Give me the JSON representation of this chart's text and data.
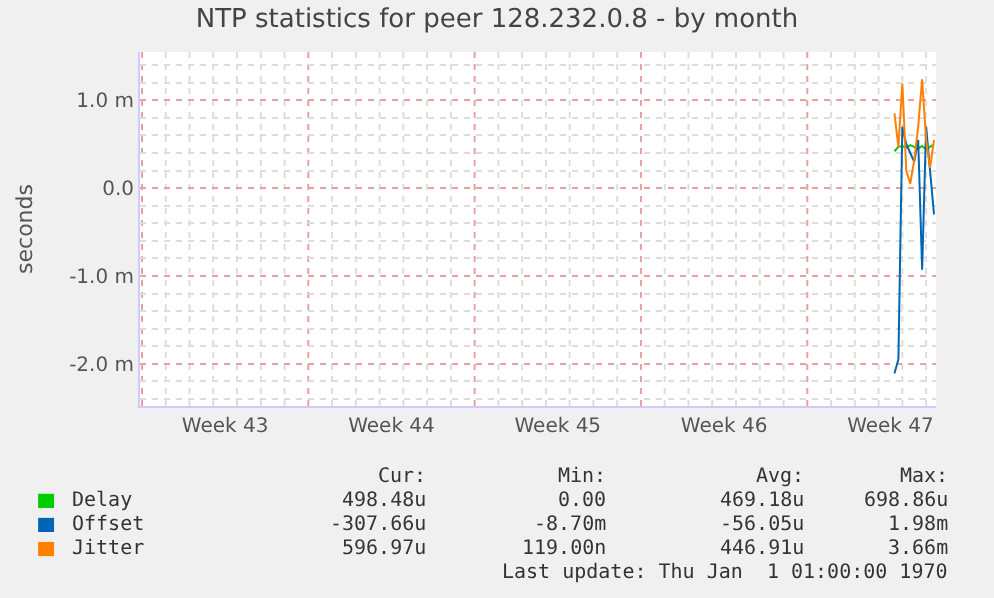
{
  "chart_data": {
    "type": "line",
    "title": "NTP statistics for peer 128.232.0.8 - by month",
    "ylabel": "seconds",
    "categories": [
      null,
      null,
      null,
      null,
      null,
      null,
      null,
      null,
      null,
      null,
      null,
      null,
      null,
      null,
      null,
      null,
      null,
      null,
      null,
      null,
      null,
      "Week 43",
      null,
      null,
      null,
      null,
      null,
      null,
      null,
      null,
      null,
      null,
      null,
      null,
      null,
      null,
      null,
      null,
      null,
      null,
      null,
      null,
      null,
      null,
      null,
      null,
      null,
      null,
      null,
      null,
      null,
      null,
      null,
      null,
      null,
      null,
      null,
      null,
      null,
      null,
      null,
      null,
      null,
      "Week 44",
      null,
      null,
      null,
      null,
      null,
      null,
      null,
      null,
      null,
      null,
      null,
      null,
      null,
      null,
      null,
      null,
      null,
      null,
      null,
      null,
      null,
      null,
      null,
      null,
      null,
      null,
      null,
      null,
      null,
      null,
      null,
      null,
      null,
      null,
      null,
      null,
      null,
      null,
      null,
      null,
      null,
      "Week 45",
      null,
      null,
      null,
      null,
      null,
      null,
      null,
      null,
      null,
      null,
      null,
      null,
      null,
      null,
      null,
      null,
      null,
      null,
      null,
      null,
      null,
      null,
      null,
      null,
      null,
      null,
      null,
      null,
      null,
      null,
      null,
      null,
      null,
      null,
      null,
      null,
      null,
      null,
      null,
      null,
      null,
      "Week 46",
      null,
      null,
      null,
      null,
      null,
      null,
      null,
      null,
      null,
      null,
      null,
      null,
      null,
      null,
      null,
      null,
      null,
      null,
      null,
      null,
      null,
      null,
      null,
      null,
      null,
      null,
      null,
      null,
      null,
      null,
      null,
      null,
      null,
      null,
      null,
      null,
      null,
      null,
      null,
      null,
      null,
      "Week 47",
      null,
      null,
      null,
      null,
      null,
      null,
      null,
      null,
      null,
      null,
      null
    ],
    "ylim": [
      -2.48,
      1.55
    ],
    "yticks": [
      {
        "value": -2.0,
        "label": "-2.0 m"
      },
      {
        "value": -1.0,
        "label": "-1.0 m"
      },
      {
        "value": 0,
        "label": "0.0"
      },
      {
        "value": 1.0,
        "label": "1.0 m"
      }
    ],
    "grid": true,
    "legend": "bottom",
    "series": [
      {
        "name": "Delay",
        "color": "#00cc00",
        "values": [
          null,
          null,
          null,
          null,
          null,
          null,
          null,
          null,
          null,
          null,
          null,
          null,
          null,
          null,
          null,
          null,
          null,
          null,
          null,
          null,
          null,
          null,
          null,
          null,
          null,
          null,
          null,
          null,
          null,
          null,
          null,
          null,
          null,
          null,
          null,
          null,
          null,
          null,
          null,
          null,
          null,
          null,
          null,
          null,
          null,
          null,
          null,
          null,
          null,
          null,
          null,
          null,
          null,
          null,
          null,
          null,
          null,
          null,
          null,
          null,
          null,
          null,
          null,
          null,
          null,
          null,
          null,
          null,
          null,
          null,
          null,
          null,
          null,
          null,
          null,
          null,
          null,
          null,
          null,
          null,
          null,
          null,
          null,
          null,
          null,
          null,
          null,
          null,
          null,
          null,
          null,
          null,
          null,
          null,
          null,
          null,
          null,
          null,
          null,
          null,
          null,
          null,
          null,
          null,
          null,
          null,
          null,
          null,
          null,
          null,
          null,
          null,
          null,
          null,
          null,
          null,
          null,
          null,
          null,
          null,
          null,
          null,
          null,
          null,
          null,
          null,
          null,
          null,
          null,
          null,
          null,
          null,
          null,
          null,
          null,
          null,
          null,
          null,
          null,
          null,
          null,
          null,
          null,
          null,
          null,
          null,
          null,
          null,
          null,
          null,
          null,
          null,
          null,
          null,
          null,
          null,
          null,
          null,
          null,
          null,
          null,
          null,
          null,
          null,
          null,
          null,
          null,
          null,
          null,
          null,
          null,
          null,
          null,
          null,
          null,
          null,
          null,
          null,
          null,
          null,
          null,
          null,
          null,
          null,
          null,
          null,
          null,
          null,
          null,
          null,
          0.42,
          0.47,
          0.48,
          0.46,
          0.49,
          0.47,
          0.45,
          0.48,
          0.44,
          0.47,
          0.5
        ]
      },
      {
        "name": "Offset",
        "color": "#0066b3",
        "values": [
          null,
          null,
          null,
          null,
          null,
          null,
          null,
          null,
          null,
          null,
          null,
          null,
          null,
          null,
          null,
          null,
          null,
          null,
          null,
          null,
          null,
          null,
          null,
          null,
          null,
          null,
          null,
          null,
          null,
          null,
          null,
          null,
          null,
          null,
          null,
          null,
          null,
          null,
          null,
          null,
          null,
          null,
          null,
          null,
          null,
          null,
          null,
          null,
          null,
          null,
          null,
          null,
          null,
          null,
          null,
          null,
          null,
          null,
          null,
          null,
          null,
          null,
          null,
          null,
          null,
          null,
          null,
          null,
          null,
          null,
          null,
          null,
          null,
          null,
          null,
          null,
          null,
          null,
          null,
          null,
          null,
          null,
          null,
          null,
          null,
          null,
          null,
          null,
          null,
          null,
          null,
          null,
          null,
          null,
          null,
          null,
          null,
          null,
          null,
          null,
          null,
          null,
          null,
          null,
          null,
          null,
          null,
          null,
          null,
          null,
          null,
          null,
          null,
          null,
          null,
          null,
          null,
          null,
          null,
          null,
          null,
          null,
          null,
          null,
          null,
          null,
          null,
          null,
          null,
          null,
          null,
          null,
          null,
          null,
          null,
          null,
          null,
          null,
          null,
          null,
          null,
          null,
          null,
          null,
          null,
          null,
          null,
          null,
          null,
          null,
          null,
          null,
          null,
          null,
          null,
          null,
          null,
          null,
          null,
          null,
          null,
          null,
          null,
          null,
          null,
          null,
          null,
          null,
          null,
          null,
          null,
          null,
          null,
          null,
          null,
          null,
          null,
          null,
          null,
          null,
          null,
          null,
          null,
          null,
          null,
          null,
          null,
          null,
          null,
          null,
          -2.11,
          -1.95,
          0.7,
          0.5,
          0.4,
          0.3,
          0.55,
          -0.93,
          0.7,
          0.2,
          -0.3
        ]
      },
      {
        "name": "Jitter",
        "color": "#ff8000",
        "values": [
          null,
          null,
          null,
          null,
          null,
          null,
          null,
          null,
          null,
          null,
          null,
          null,
          null,
          null,
          null,
          null,
          null,
          null,
          null,
          null,
          null,
          null,
          null,
          null,
          null,
          null,
          null,
          null,
          null,
          null,
          null,
          null,
          null,
          null,
          null,
          null,
          null,
          null,
          null,
          null,
          null,
          null,
          null,
          null,
          null,
          null,
          null,
          null,
          null,
          null,
          null,
          null,
          null,
          null,
          null,
          null,
          null,
          null,
          null,
          null,
          null,
          null,
          null,
          null,
          null,
          null,
          null,
          null,
          null,
          null,
          null,
          null,
          null,
          null,
          null,
          null,
          null,
          null,
          null,
          null,
          null,
          null,
          null,
          null,
          null,
          null,
          null,
          null,
          null,
          null,
          null,
          null,
          null,
          null,
          null,
          null,
          null,
          null,
          null,
          null,
          null,
          null,
          null,
          null,
          null,
          null,
          null,
          null,
          null,
          null,
          null,
          null,
          null,
          null,
          null,
          null,
          null,
          null,
          null,
          null,
          null,
          null,
          null,
          null,
          null,
          null,
          null,
          null,
          null,
          null,
          null,
          null,
          null,
          null,
          null,
          null,
          null,
          null,
          null,
          null,
          null,
          null,
          null,
          null,
          null,
          null,
          null,
          null,
          null,
          null,
          null,
          null,
          null,
          null,
          null,
          null,
          null,
          null,
          null,
          null,
          null,
          null,
          null,
          null,
          null,
          null,
          null,
          null,
          null,
          null,
          null,
          null,
          null,
          null,
          null,
          null,
          null,
          null,
          null,
          null,
          null,
          null,
          null,
          null,
          null,
          null,
          null,
          null,
          null,
          null,
          0.85,
          0.47,
          1.19,
          0.2,
          0.05,
          0.32,
          0.7,
          1.24,
          0.55,
          0.23,
          0.55
        ]
      }
    ],
    "annotations": [
      "Cur:",
      "Min:",
      "Avg:",
      "Max:",
      "498.48u",
      "0.00",
      "469.18u",
      "698.86u",
      "-307.66u",
      "-8.70m",
      "-56.05u",
      "1.98m",
      "596.97u",
      "119.00n",
      "446.91u",
      "3.66m",
      "Last update: Thu Jan  1 01:00:00 1970"
    ]
  }
}
